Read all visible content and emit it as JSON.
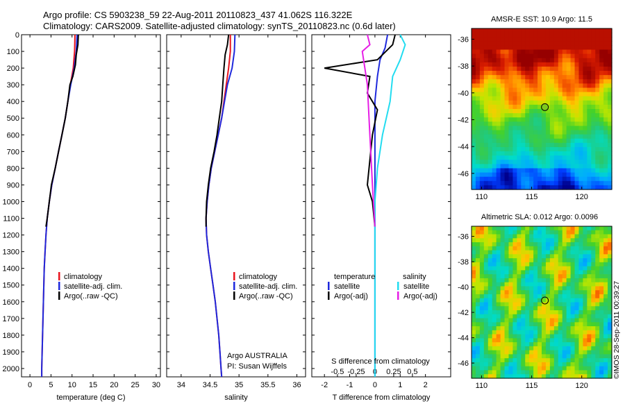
{
  "header": {
    "line1": "Argo profile: CS 5903238_59 22-Aug-2011 20110823_437 41.062S 116.322E",
    "line2": "Climatology: CARS2009. Satellite-adjusted climatology: synTS_20110823.nc (0.6d later)"
  },
  "colors": {
    "climatology": "#e8141e",
    "satellite": "#1e28dc",
    "argo": "#000000",
    "salinity_satellite": "#22dcf0",
    "salinity_argo": "#e61ee6"
  },
  "depth_axis": {
    "ticks": [
      0,
      100,
      200,
      300,
      400,
      500,
      600,
      700,
      800,
      900,
      1000,
      1100,
      1200,
      1300,
      1400,
      1500,
      1600,
      1700,
      1800,
      1900,
      2000
    ],
    "range": [
      0,
      2050
    ]
  },
  "chart_data": [
    {
      "type": "line",
      "name_key": "temperature",
      "xlabel": "temperature (deg C)",
      "xlim": [
        -2,
        31
      ],
      "xticks": [
        0,
        5,
        10,
        15,
        20,
        25,
        30
      ],
      "legend": [
        "climatology",
        "satellite-adj. clim.",
        "Argo(..raw -QC)"
      ],
      "legend_placement": "lower-center",
      "series": [
        {
          "name": "climatology",
          "color": "#e8141e",
          "points": [
            [
              10.7,
              0
            ],
            [
              10.6,
              100
            ],
            [
              10.3,
              200
            ],
            [
              9.6,
              300
            ],
            [
              9.0,
              400
            ],
            [
              8.4,
              500
            ],
            [
              7.6,
              600
            ],
            [
              6.8,
              700
            ],
            [
              6.0,
              800
            ],
            [
              5.2,
              900
            ],
            [
              4.6,
              1000
            ],
            [
              4.1,
              1100
            ],
            [
              3.8,
              1200
            ],
            [
              3.6,
              1300
            ],
            [
              3.4,
              1400
            ],
            [
              3.3,
              1500
            ],
            [
              3.2,
              1600
            ],
            [
              3.1,
              1700
            ],
            [
              3.0,
              1800
            ],
            [
              2.9,
              1900
            ],
            [
              2.8,
              2000
            ],
            [
              2.8,
              2050
            ]
          ]
        },
        {
          "name": "satellite-adj. clim.",
          "color": "#1e28dc",
          "points": [
            [
              11.2,
              0
            ],
            [
              11.0,
              100
            ],
            [
              10.5,
              200
            ],
            [
              9.7,
              300
            ],
            [
              9.0,
              400
            ],
            [
              8.4,
              500
            ],
            [
              7.6,
              600
            ],
            [
              6.8,
              700
            ],
            [
              6.0,
              800
            ],
            [
              5.2,
              900
            ],
            [
              4.6,
              1000
            ],
            [
              4.1,
              1100
            ],
            [
              3.8,
              1200
            ],
            [
              3.6,
              1300
            ],
            [
              3.4,
              1400
            ],
            [
              3.3,
              1500
            ],
            [
              3.2,
              1600
            ],
            [
              3.1,
              1700
            ],
            [
              3.0,
              1800
            ],
            [
              2.9,
              1900
            ],
            [
              2.8,
              2000
            ],
            [
              2.8,
              2050
            ]
          ]
        },
        {
          "name": "Argo(..raw -QC)",
          "color": "#000000",
          "points": [
            [
              11.5,
              0
            ],
            [
              11.4,
              60
            ],
            [
              11.0,
              120
            ],
            [
              10.8,
              180
            ],
            [
              10.2,
              250
            ],
            [
              9.5,
              300
            ],
            [
              9.0,
              400
            ],
            [
              8.4,
              500
            ],
            [
              7.6,
              600
            ],
            [
              6.8,
              700
            ],
            [
              6.0,
              800
            ],
            [
              5.1,
              900
            ],
            [
              4.6,
              1000
            ],
            [
              4.1,
              1100
            ],
            [
              3.8,
              1150
            ]
          ]
        }
      ]
    },
    {
      "type": "line",
      "name_key": "salinity",
      "xlabel": "salinity",
      "xlim": [
        33.75,
        36.15
      ],
      "xticks": [
        34,
        34.5,
        35,
        35.5,
        36
      ],
      "legend": [
        "climatology",
        "satellite-adj. clim.",
        "Argo(..raw -QC)"
      ],
      "legend_placement": "lower-center",
      "annotation": [
        "Argo AUSTRALIA",
        "PI: Susan Wijffels"
      ],
      "series": [
        {
          "name": "climatology",
          "color": "#e8141e",
          "points": [
            [
              34.85,
              0
            ],
            [
              34.85,
              100
            ],
            [
              34.82,
              200
            ],
            [
              34.78,
              300
            ],
            [
              34.74,
              400
            ],
            [
              34.7,
              500
            ],
            [
              34.64,
              600
            ],
            [
              34.58,
              700
            ],
            [
              34.52,
              800
            ],
            [
              34.48,
              900
            ],
            [
              34.45,
              1000
            ],
            [
              34.43,
              1100
            ],
            [
              34.44,
              1200
            ],
            [
              34.47,
              1300
            ],
            [
              34.51,
              1400
            ],
            [
              34.55,
              1500
            ],
            [
              34.59,
              1600
            ],
            [
              34.62,
              1700
            ],
            [
              34.65,
              1800
            ],
            [
              34.67,
              1900
            ],
            [
              34.69,
              2000
            ],
            [
              34.7,
              2050
            ]
          ]
        },
        {
          "name": "satellite-adj. clim.",
          "color": "#1e28dc",
          "points": [
            [
              34.93,
              0
            ],
            [
              34.92,
              100
            ],
            [
              34.88,
              200
            ],
            [
              34.8,
              300
            ],
            [
              34.75,
              400
            ],
            [
              34.7,
              500
            ],
            [
              34.64,
              600
            ],
            [
              34.58,
              700
            ],
            [
              34.52,
              800
            ],
            [
              34.48,
              900
            ],
            [
              34.45,
              1000
            ],
            [
              34.43,
              1100
            ],
            [
              34.44,
              1200
            ],
            [
              34.47,
              1300
            ],
            [
              34.51,
              1400
            ],
            [
              34.55,
              1500
            ],
            [
              34.59,
              1600
            ],
            [
              34.62,
              1700
            ],
            [
              34.65,
              1800
            ],
            [
              34.67,
              1900
            ],
            [
              34.69,
              2000
            ],
            [
              34.7,
              2050
            ]
          ]
        },
        {
          "name": "Argo(..raw -QC)",
          "color": "#000000",
          "points": [
            [
              34.82,
              0
            ],
            [
              34.8,
              60
            ],
            [
              34.76,
              120
            ],
            [
              34.74,
              200
            ],
            [
              34.72,
              300
            ],
            [
              34.7,
              400
            ],
            [
              34.66,
              500
            ],
            [
              34.62,
              600
            ],
            [
              34.57,
              700
            ],
            [
              34.51,
              800
            ],
            [
              34.47,
              900
            ],
            [
              34.44,
              1000
            ],
            [
              34.43,
              1100
            ],
            [
              34.43,
              1150
            ]
          ]
        }
      ]
    },
    {
      "type": "line",
      "name_key": "difference",
      "xlabel": "T difference from climatology",
      "xlabel2": "S difference from climatology",
      "xlim": [
        -2.5,
        3.0
      ],
      "xticks": [
        -2,
        -1,
        0,
        1,
        2
      ],
      "xticks_s": [
        -0.5,
        -0.25,
        0,
        0.25,
        0.5
      ],
      "legend_t_title": "temperature",
      "legend_s_title": "salinity",
      "legend": [
        "satellite",
        "Argo(-adj)",
        "satellite",
        "Argo(-adj)"
      ],
      "series": [
        {
          "name": "T satellite",
          "color": "#1e28dc",
          "points": [
            [
              0.5,
              0
            ],
            [
              0.4,
              80
            ],
            [
              0.2,
              150
            ],
            [
              0.1,
              250
            ],
            [
              0,
              400
            ],
            [
              0,
              2050
            ]
          ]
        },
        {
          "name": "T Argo(-adj)",
          "color": "#000000",
          "points": [
            [
              0.8,
              0
            ],
            [
              0.7,
              60
            ],
            [
              0.1,
              150
            ],
            [
              -2.0,
              200
            ],
            [
              -0.2,
              250
            ],
            [
              -0.3,
              350
            ],
            [
              0.1,
              450
            ],
            [
              -0.1,
              600
            ],
            [
              -0.3,
              900
            ],
            [
              -0.1,
              1000
            ],
            [
              0,
              1150
            ]
          ]
        },
        {
          "name": "S satellite",
          "color": "#22dcf0",
          "points": [
            [
              1.0,
              0
            ],
            [
              1.2,
              60
            ],
            [
              1.0,
              150
            ],
            [
              0.7,
              250
            ],
            [
              0.6,
              400
            ],
            [
              0.3,
              600
            ],
            [
              0.1,
              800
            ],
            [
              0,
              1000
            ],
            [
              0,
              2050
            ]
          ]
        },
        {
          "name": "S Argo(-adj)",
          "color": "#e61ee6",
          "points": [
            [
              -0.3,
              0
            ],
            [
              -0.2,
              60
            ],
            [
              -0.5,
              100
            ],
            [
              -0.4,
              200
            ],
            [
              -0.3,
              300
            ],
            [
              -0.2,
              600
            ],
            [
              -0.1,
              900
            ],
            [
              0,
              1150
            ]
          ]
        }
      ]
    },
    {
      "type": "heatmap",
      "name_key": "sst_map",
      "title": "AMSR-E SST: 10.9 Argo: 11.5",
      "xticks": [
        110,
        115,
        120
      ],
      "yticks": [
        -36,
        -38,
        -40,
        -42,
        -44,
        -46
      ],
      "xlim": [
        109,
        123
      ],
      "ylim": [
        -47.2,
        -35.2
      ],
      "marker": {
        "lon": 116.322,
        "lat": -41.062
      }
    },
    {
      "type": "heatmap",
      "name_key": "sla_map",
      "title": "Altimetric SLA: 0.012 Argo: 0.0096",
      "xticks": [
        110,
        115,
        120
      ],
      "yticks": [
        -36,
        -38,
        -40,
        -42,
        -44,
        -46
      ],
      "xlim": [
        109,
        123
      ],
      "ylim": [
        -47.2,
        -35.2
      ],
      "marker": {
        "lon": 116.322,
        "lat": -41.062
      }
    }
  ],
  "credit": "©IMOS 28-Sep-2011 00:39:27"
}
